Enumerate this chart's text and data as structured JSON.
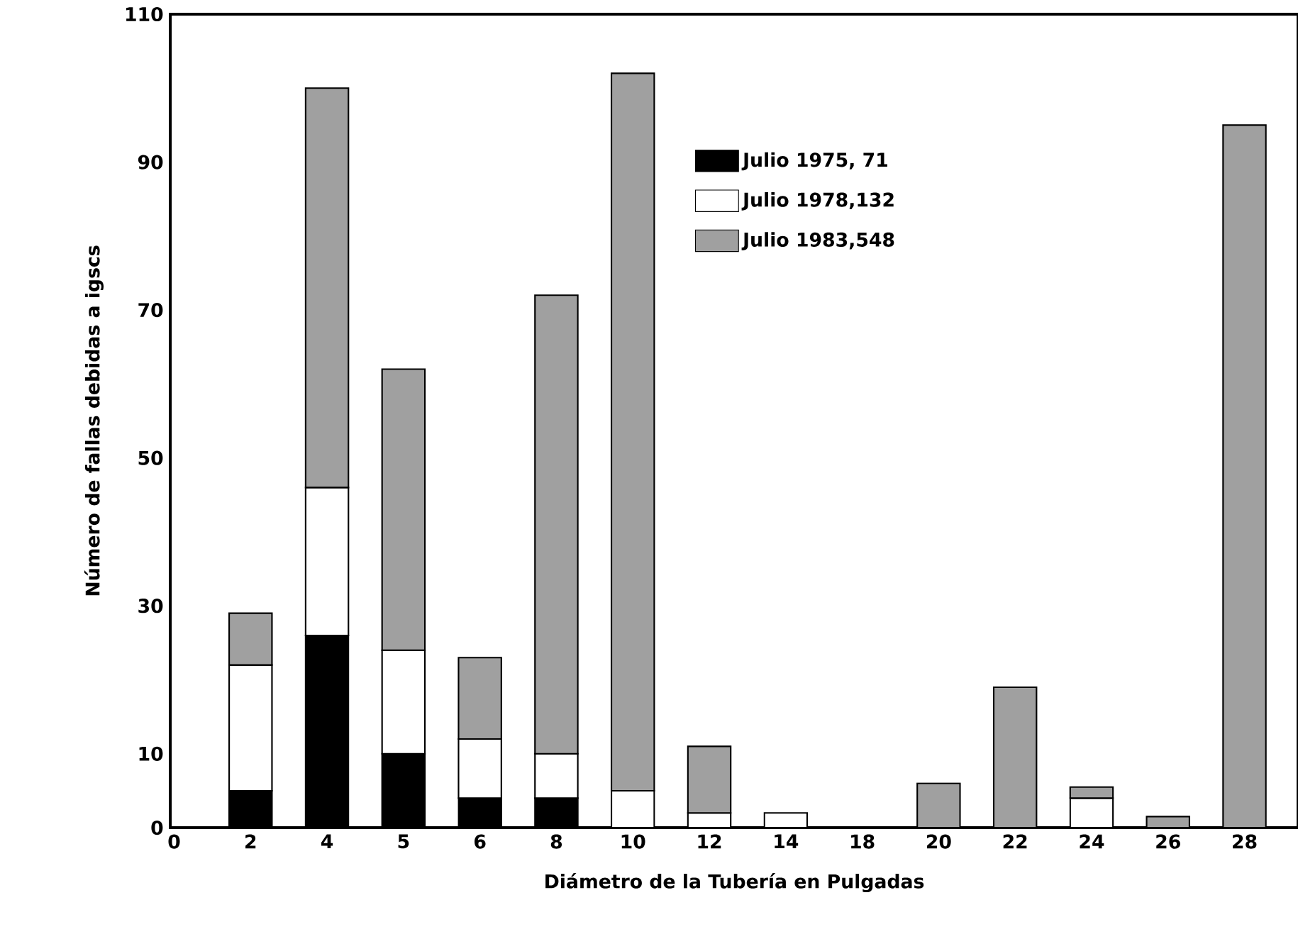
{
  "chart_data": {
    "type": "bar",
    "stacked": true,
    "xlabel": "Diámetro de la Tubería en Pulgadas",
    "ylabel": "Número de fallas debidas a igscs",
    "categories": [
      "0",
      "2",
      "4",
      "5",
      "6",
      "8",
      "10",
      "12",
      "14",
      "18",
      "20",
      "22",
      "24",
      "26",
      "28"
    ],
    "series": [
      {
        "name": "Julio 1975, 71",
        "color": "#000000",
        "values": [
          null,
          5,
          26,
          10,
          4,
          4,
          null,
          null,
          null,
          null,
          null,
          null,
          null,
          null,
          null
        ]
      },
      {
        "name": "Julio 1978,132",
        "color": "#ffffff",
        "values": [
          null,
          17,
          20,
          14,
          8,
          6,
          5,
          2,
          2,
          null,
          null,
          null,
          4,
          null,
          null
        ]
      },
      {
        "name": "Julio 1983,548",
        "color": "#a0a0a0",
        "values": [
          null,
          7,
          54,
          38,
          11,
          62,
          97,
          9,
          null,
          null,
          6,
          19,
          1.5,
          1.5,
          95
        ]
      }
    ],
    "ylim": [
      0,
      110
    ],
    "yticks": [
      0,
      10,
      30,
      50,
      70,
      90,
      110
    ],
    "legend": "top",
    "grid": false
  }
}
